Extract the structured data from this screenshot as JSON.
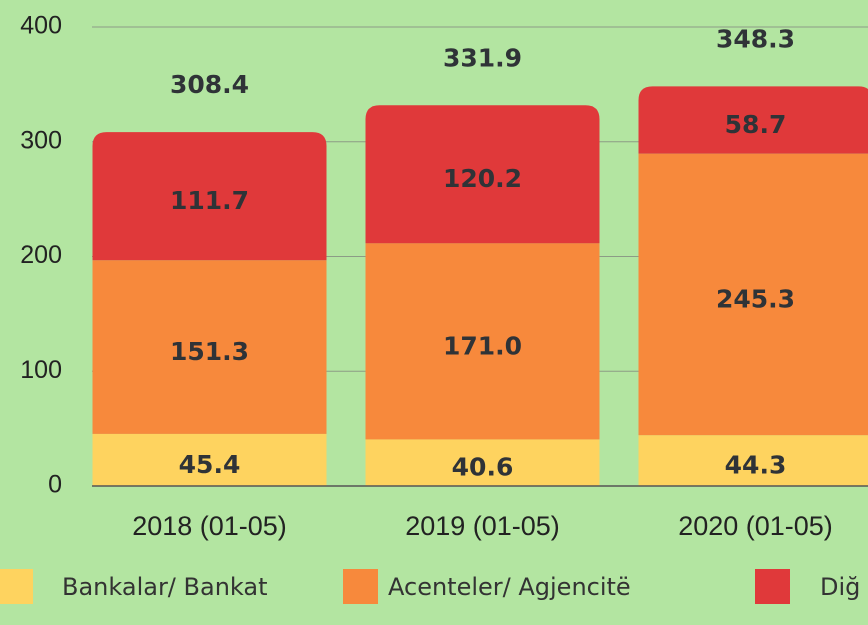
{
  "chart_data": {
    "type": "stacked_bar",
    "categories": [
      "2018 (01-05)",
      "2019 (01-05)",
      "2020 (01-05)"
    ],
    "series": [
      {
        "name": "Bankalar/ Bankat",
        "color": "#fed35f",
        "values": [
          45.4,
          40.6,
          44.3
        ]
      },
      {
        "name": "Acenteler/ Agjencitë",
        "color": "#f7893c",
        "values": [
          151.3,
          171.0,
          245.3
        ],
        "value_labels": [
          "151.3",
          "171.0",
          "245.3"
        ]
      },
      {
        "name": "Diğ",
        "color": "#e0393a",
        "values": [
          111.7,
          120.2,
          58.7
        ]
      }
    ],
    "totals": [
      308.4,
      331.9,
      348.3
    ],
    "ylim": [
      0,
      400
    ],
    "yticks": [
      0,
      100,
      200,
      300,
      400
    ],
    "grid": true
  }
}
